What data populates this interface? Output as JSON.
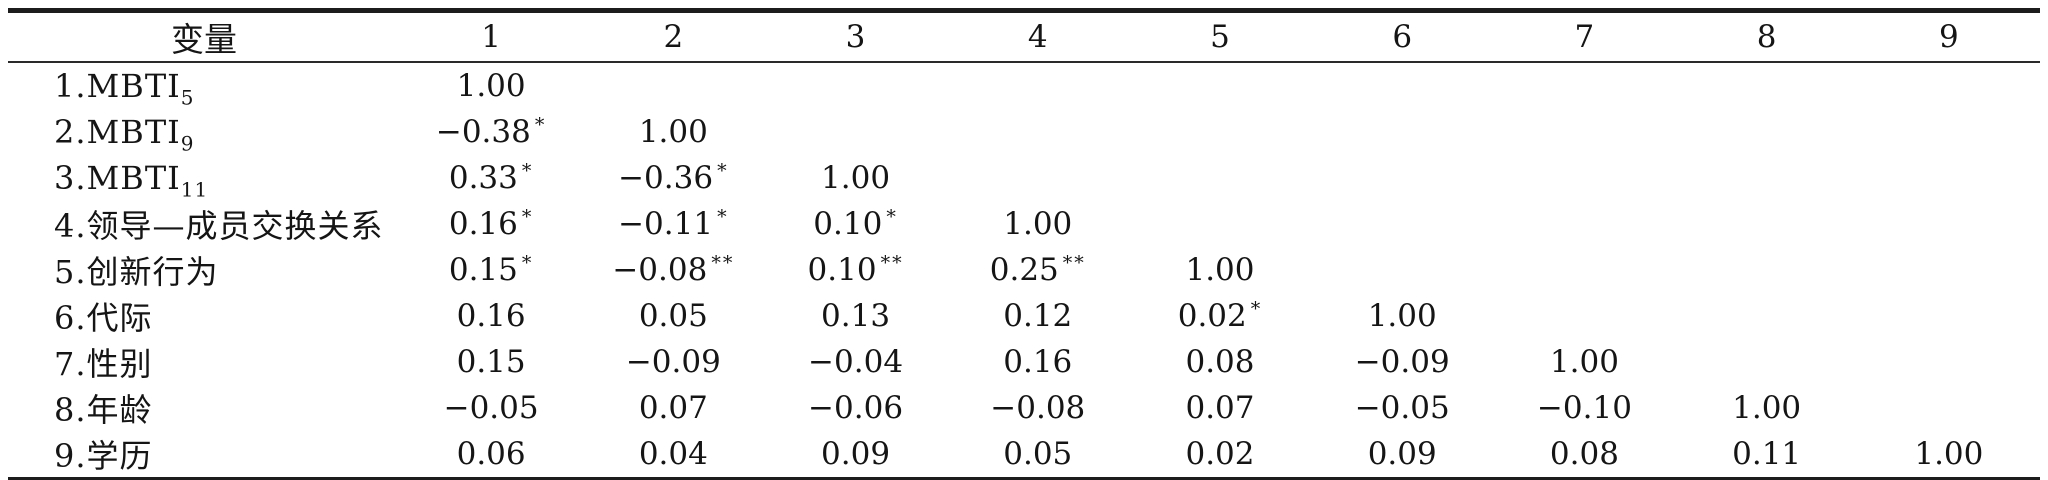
{
  "table": {
    "header": {
      "variable_label": "变量",
      "columns": [
        "1",
        "2",
        "3",
        "4",
        "5",
        "6",
        "7",
        "8",
        "9"
      ]
    },
    "rows": [
      {
        "label": "1.MBTI",
        "sub": "5",
        "cells": [
          {
            "v": "1.00",
            "s": ""
          },
          null,
          null,
          null,
          null,
          null,
          null,
          null,
          null
        ]
      },
      {
        "label": "2.MBTI",
        "sub": "9",
        "cells": [
          {
            "v": "−0.38",
            "s": "*"
          },
          {
            "v": "1.00",
            "s": ""
          },
          null,
          null,
          null,
          null,
          null,
          null,
          null
        ]
      },
      {
        "label": "3.MBTI",
        "sub": "11",
        "cells": [
          {
            "v": "0.33",
            "s": "*"
          },
          {
            "v": "−0.36",
            "s": "*"
          },
          {
            "v": "1.00",
            "s": ""
          },
          null,
          null,
          null,
          null,
          null,
          null
        ]
      },
      {
        "label": "4.领导—成员交换关系",
        "sub": "",
        "cells": [
          {
            "v": "0.16",
            "s": "*"
          },
          {
            "v": "−0.11",
            "s": "*"
          },
          {
            "v": "0.10",
            "s": "*"
          },
          {
            "v": "1.00",
            "s": ""
          },
          null,
          null,
          null,
          null,
          null
        ]
      },
      {
        "label": "5.创新行为",
        "sub": "",
        "cells": [
          {
            "v": "0.15",
            "s": "*"
          },
          {
            "v": "−0.08",
            "s": "**"
          },
          {
            "v": "0.10",
            "s": "**"
          },
          {
            "v": "0.25",
            "s": "**"
          },
          {
            "v": "1.00",
            "s": ""
          },
          null,
          null,
          null,
          null
        ]
      },
      {
        "label": "6.代际",
        "sub": "",
        "cells": [
          {
            "v": "0.16",
            "s": ""
          },
          {
            "v": "0.05",
            "s": ""
          },
          {
            "v": "0.13",
            "s": ""
          },
          {
            "v": "0.12",
            "s": ""
          },
          {
            "v": "0.02",
            "s": "*"
          },
          {
            "v": "1.00",
            "s": ""
          },
          null,
          null,
          null
        ]
      },
      {
        "label": "7.性别",
        "sub": "",
        "cells": [
          {
            "v": "0.15",
            "s": ""
          },
          {
            "v": "−0.09",
            "s": ""
          },
          {
            "v": "−0.04",
            "s": ""
          },
          {
            "v": "0.16",
            "s": ""
          },
          {
            "v": "0.08",
            "s": ""
          },
          {
            "v": "−0.09",
            "s": ""
          },
          {
            "v": "1.00",
            "s": ""
          },
          null,
          null
        ]
      },
      {
        "label": "8.年龄",
        "sub": "",
        "cells": [
          {
            "v": "−0.05",
            "s": ""
          },
          {
            "v": "0.07",
            "s": ""
          },
          {
            "v": "−0.06",
            "s": ""
          },
          {
            "v": "−0.08",
            "s": ""
          },
          {
            "v": "0.07",
            "s": ""
          },
          {
            "v": "−0.05",
            "s": ""
          },
          {
            "v": "−0.10",
            "s": ""
          },
          {
            "v": "1.00",
            "s": ""
          },
          null
        ]
      },
      {
        "label": "9.学历",
        "sub": "",
        "cells": [
          {
            "v": "0.06",
            "s": ""
          },
          {
            "v": "0.04",
            "s": ""
          },
          {
            "v": "0.09",
            "s": ""
          },
          {
            "v": "0.05",
            "s": ""
          },
          {
            "v": "0.02",
            "s": ""
          },
          {
            "v": "0.09",
            "s": ""
          },
          {
            "v": "0.08",
            "s": ""
          },
          {
            "v": "0.11",
            "s": ""
          },
          {
            "v": "1.00",
            "s": ""
          }
        ]
      }
    ]
  }
}
